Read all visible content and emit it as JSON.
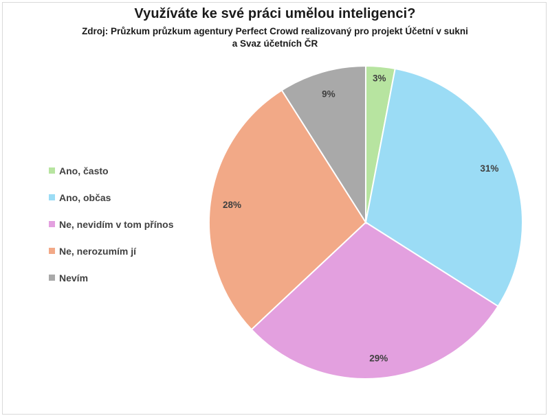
{
  "chart_data": {
    "type": "pie",
    "title": "Využíváte ke své práci umělou inteligenci?",
    "subtitle_lines": [
      "Zdroj: Průzkum průzkum agentury Perfect Crowd realizovaný pro projekt Účetní v sukni",
      "a Svaz účetních ČR"
    ],
    "legend_position": "left",
    "start_angle_deg": 0,
    "direction": "clockwise",
    "slices": [
      {
        "label": "Ano, často",
        "value": 3,
        "data_label": "3%",
        "color": "#b7e4a0"
      },
      {
        "label": "Ano, občas",
        "value": 31,
        "data_label": "31%",
        "color": "#9bdcf5"
      },
      {
        "label": "Ne, nevidím v tom přínos",
        "value": 29,
        "data_label": "29%",
        "color": "#e3a0df"
      },
      {
        "label": "Ne, nerozumím jí",
        "value": 28,
        "data_label": "28%",
        "color": "#f2a987"
      },
      {
        "label": "Nevím",
        "value": 9,
        "data_label": "9%",
        "color": "#a9a9a9"
      }
    ]
  }
}
